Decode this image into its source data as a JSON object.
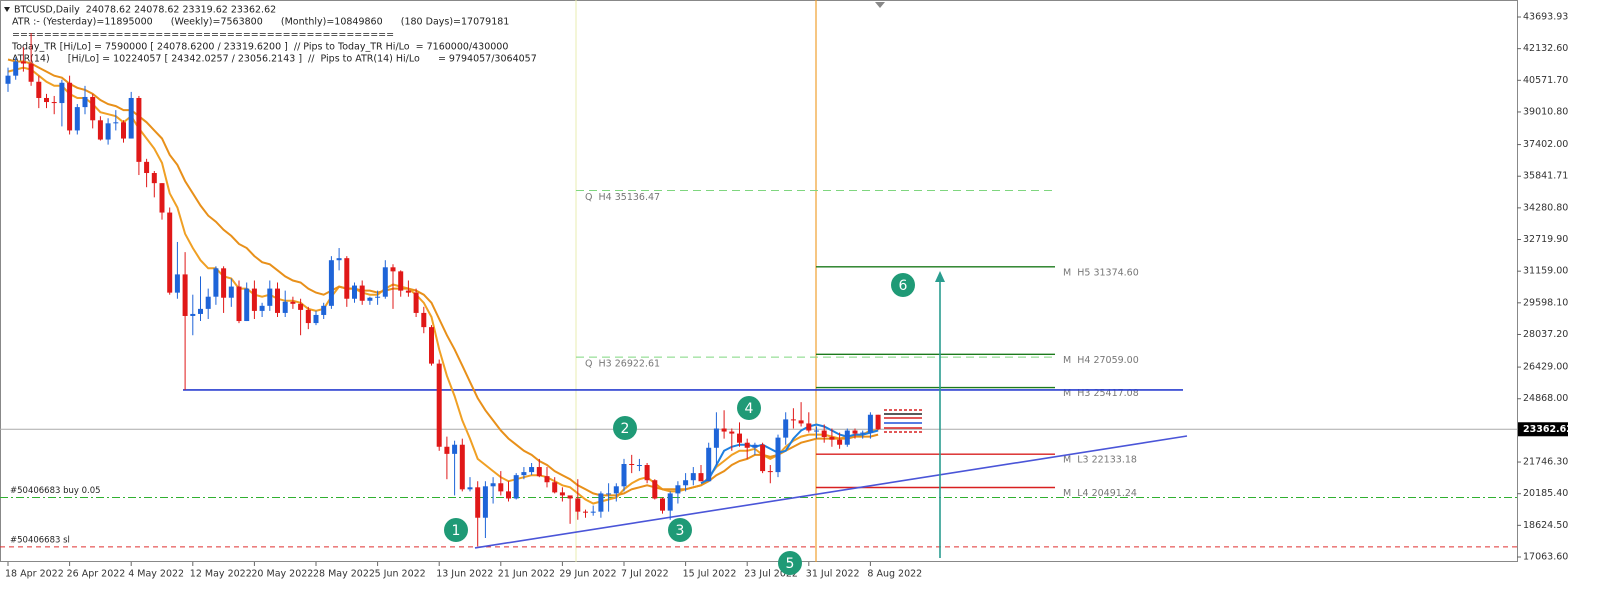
{
  "header": {
    "symbol_line": "BTCUSD,Daily  24078.62 24078.62 23319.62 23362.62",
    "atr_line": "ATR :- (Yesterday)=11895000      (Weekly)=7563800      (Monthly)=10849860      (180 Days)=17079181",
    "separator": "================================================",
    "today_tr_line": "Today_TR [Hi/Lo] = 7590000 [ 24078.6200 / 23319.6200 ]  // Pips to Today_TR Hi/Lo  = 7160000/430000",
    "atr14_line": "ATR(14)      [Hi/Lo] = 10224057 [ 24342.0257 / 23056.2143 ]  //  Pips to ATR(14) Hi/Lo      = 9794057/3064057"
  },
  "chart_data": {
    "type": "candlestick",
    "categories": [
      "18 Apr 2022",
      null,
      null,
      null,
      null,
      null,
      null,
      null,
      "26 Apr 2022",
      null,
      null,
      null,
      null,
      null,
      null,
      null,
      "4 May 2022",
      null,
      null,
      null,
      null,
      null,
      null,
      null,
      "12 May 2022",
      null,
      null,
      null,
      null,
      null,
      null,
      null,
      "20 May 2022",
      null,
      null,
      null,
      null,
      null,
      null,
      null,
      "28 May 2022",
      null,
      null,
      null,
      null,
      null,
      null,
      null,
      "5 Jun 2022",
      null,
      null,
      null,
      null,
      null,
      null,
      null,
      "13 Jun 2022",
      null,
      null,
      null,
      null,
      null,
      null,
      null,
      "21 Jun 2022",
      null,
      null,
      null,
      null,
      null,
      null,
      null,
      "29 Jun 2022",
      null,
      null,
      null,
      null,
      null,
      null,
      null,
      "7 Jul 2022",
      null,
      null,
      null,
      null,
      null,
      null,
      null,
      "15 Jul 2022",
      null,
      null,
      null,
      null,
      null,
      null,
      null,
      "23 Jul 2022",
      null,
      null,
      null,
      null,
      null,
      null,
      null,
      "31 Jul 2022",
      null,
      null,
      null,
      null,
      null,
      null,
      null,
      "8 Aug 2022",
      null
    ],
    "open": [
      40400,
      40800,
      41500,
      41400,
      40500,
      39700,
      39500,
      39450,
      40450,
      38100,
      39250,
      39750,
      38600,
      37650,
      38450,
      38500,
      37700,
      39700,
      36550,
      36000,
      35500,
      34050,
      30100,
      31000,
      28950,
      29050,
      29300,
      29900,
      31300,
      29850,
      30400,
      28700,
      30300,
      29200,
      29450,
      30300,
      29100,
      29650,
      29550,
      29250,
      28600,
      29000,
      29450,
      31700,
      31800,
      29800,
      30450,
      29700,
      29850,
      29900,
      31350,
      31150,
      30200,
      30100,
      29100,
      28400,
      26600,
      22500,
      22150,
      22600,
      20400,
      20500,
      19000,
      20550,
      20700,
      20300,
      19950,
      21100,
      21250,
      21500,
      21050,
      20750,
      20250,
      20100,
      19950,
      19300,
      19250,
      19300,
      20200,
      20200,
      20550,
      21650,
      21600,
      21600,
      20850,
      19950,
      19350,
      20200,
      20600,
      20850,
      21200,
      20800,
      22450,
      23400,
      23250,
      23150,
      22700,
      22450,
      22600,
      21300,
      21250,
      22950,
      23850,
      23800,
      23650,
      23300,
      23300,
      22980,
      22850,
      22600,
      23300,
      23150,
      23200,
      24078.62
    ],
    "high": [
      41200,
      41700,
      42200,
      42900,
      40800,
      39900,
      39800,
      40600,
      40800,
      39400,
      40300,
      39900,
      38800,
      38700,
      39100,
      38600,
      40000,
      39800,
      36700,
      36100,
      35500,
      34300,
      32600,
      32100,
      30000,
      30900,
      30300,
      31400,
      31400,
      30800,
      30700,
      30600,
      30700,
      29600,
      30700,
      30600,
      30200,
      29900,
      29800,
      29400,
      29200,
      29600,
      31900,
      32300,
      31900,
      30600,
      30700,
      29900,
      30200,
      31700,
      31500,
      31200,
      30700,
      30300,
      29400,
      28500,
      26800,
      23000,
      22800,
      22900,
      21000,
      20800,
      20800,
      21000,
      21300,
      20800,
      21200,
      21500,
      21700,
      21900,
      21500,
      21000,
      20500,
      20100,
      20900,
      19400,
      19600,
      20300,
      20700,
      20700,
      21900,
      22100,
      21900,
      21700,
      20900,
      20000,
      20300,
      20800,
      21200,
      21500,
      21600,
      22700,
      24200,
      24300,
      23400,
      23700,
      22900,
      22700,
      22700,
      21600,
      23100,
      24200,
      24400,
      24700,
      24200,
      23500,
      23600,
      23400,
      23200,
      23400,
      23400,
      23300,
      24200,
      24078.62
    ],
    "low": [
      40000,
      40600,
      41000,
      40300,
      39200,
      39200,
      38900,
      38300,
      37900,
      37900,
      38900,
      38200,
      37600,
      37400,
      38100,
      37500,
      37700,
      35900,
      35300,
      34800,
      33700,
      30000,
      29800,
      25300,
      28000,
      28700,
      28800,
      29500,
      29100,
      29400,
      28600,
      28700,
      28800,
      28900,
      29200,
      28900,
      28900,
      29300,
      28000,
      28300,
      28500,
      28800,
      29300,
      31200,
      29400,
      29600,
      29500,
      29500,
      29500,
      29800,
      29300,
      29900,
      29900,
      28900,
      28100,
      26500,
      22300,
      20900,
      20100,
      20300,
      20300,
      17600,
      18000,
      19700,
      20100,
      19800,
      19900,
      20900,
      21100,
      21000,
      20500,
      20200,
      19800,
      18700,
      18900,
      19000,
      19100,
      19000,
      19300,
      19800,
      20300,
      21200,
      21300,
      20700,
      19900,
      19200,
      18900,
      19700,
      20300,
      20600,
      20800,
      20800,
      21600,
      22900,
      22300,
      22500,
      21900,
      22100,
      21200,
      20700,
      21000,
      22600,
      23400,
      23500,
      23200,
      22900,
      22700,
      22500,
      22400,
      22500,
      22900,
      22900,
      22900,
      23319.62
    ],
    "close": [
      40800,
      41500,
      41400,
      40500,
      39700,
      39500,
      39450,
      40450,
      38100,
      39250,
      39750,
      38600,
      37650,
      38450,
      38500,
      37700,
      39700,
      36550,
      36000,
      35500,
      34050,
      30100,
      31000,
      28950,
      29050,
      29300,
      29900,
      31300,
      29850,
      30400,
      28700,
      30300,
      29200,
      29450,
      30300,
      29100,
      29650,
      29550,
      29250,
      28600,
      29000,
      29450,
      31700,
      31800,
      29800,
      30450,
      29700,
      29850,
      29900,
      31350,
      31150,
      30200,
      30100,
      29100,
      28400,
      26600,
      22500,
      22150,
      22600,
      20400,
      20500,
      19000,
      20550,
      20700,
      20300,
      19950,
      21100,
      21250,
      21500,
      21050,
      20750,
      20250,
      20100,
      19950,
      19300,
      19250,
      19300,
      20200,
      20200,
      20550,
      21650,
      21600,
      21600,
      20850,
      19950,
      19350,
      20200,
      20600,
      20850,
      21200,
      20800,
      22450,
      23400,
      23250,
      23150,
      22700,
      22450,
      22600,
      21300,
      21250,
      22950,
      23850,
      23800,
      23650,
      23300,
      23300,
      22980,
      22850,
      22600,
      23300,
      23150,
      23200,
      24078.62,
      23362.62
    ],
    "up_color": "#1e64d8",
    "down_color": "#e01818",
    "indicators": [
      {
        "color": "#f0a024",
        "values": [
          41000,
          41100,
          41200,
          41100,
          40800,
          40500,
          40300,
          40300,
          39900,
          39700,
          39700,
          39400,
          39000,
          38900,
          38800,
          38500,
          38800,
          38200,
          37700,
          37200,
          36500,
          35000,
          34300,
          33000,
          32300,
          31700,
          31300,
          31300,
          30900,
          30800,
          30300,
          30300,
          30000,
          29900,
          30000,
          29800,
          29700,
          29700,
          29600,
          29300,
          29200,
          29300,
          29900,
          30400,
          30300,
          30300,
          30100,
          30000,
          30000,
          30300,
          30500,
          30400,
          30300,
          30000,
          29600,
          28900,
          27300,
          26000,
          25000,
          23800,
          22900,
          21900,
          21600,
          21300,
          21000,
          20800,
          20900,
          21000,
          21100,
          21100,
          21000,
          20800,
          20600,
          20500,
          20200,
          19900,
          19700,
          19800,
          19900,
          20000,
          20400,
          20700,
          20900,
          21000,
          20700,
          20400,
          20300,
          20300,
          20400,
          20500,
          20600,
          21000,
          21500,
          21800,
          22100,
          22300,
          22300,
          22400,
          22100,
          21900,
          22100,
          22500,
          22800,
          23000,
          23100,
          23100,
          23100,
          23000,
          22900,
          23000,
          23000,
          23100,
          23300,
          23300
        ]
      },
      {
        "color": "#e8901a",
        "values": [
          41600,
          41500,
          41500,
          41400,
          41200,
          41000,
          40800,
          40700,
          40400,
          40200,
          40100,
          39900,
          39600,
          39400,
          39300,
          39100,
          39100,
          38800,
          38500,
          38100,
          37700,
          36900,
          36400,
          35600,
          35000,
          34400,
          33900,
          33600,
          33200,
          32900,
          32500,
          32300,
          31900,
          31600,
          31500,
          31200,
          30900,
          30700,
          30600,
          30300,
          30100,
          30000,
          30200,
          30400,
          30300,
          30300,
          30200,
          30200,
          30100,
          30200,
          30300,
          30300,
          30300,
          30200,
          30000,
          29600,
          28800,
          28000,
          27300,
          26500,
          25700,
          24900,
          24300,
          23800,
          23300,
          22900,
          22600,
          22300,
          22100,
          21800,
          21600,
          21300,
          21100,
          20900,
          20600,
          20400,
          20200,
          20100,
          20100,
          20100,
          20200,
          20400,
          20500,
          20600,
          20500,
          20400,
          20400,
          20400,
          20400,
          20500,
          20600,
          20800,
          21100,
          21300,
          21600,
          21800,
          21900,
          22100,
          22100,
          22000,
          22100,
          22300,
          22500,
          22700,
          22800,
          22900,
          22900,
          22900,
          22900,
          22900,
          23000,
          23000,
          23000,
          23100
        ]
      },
      {
        "color": "#1e7fe0",
        "values": [
          null,
          null,
          null,
          null,
          null,
          null,
          null,
          null,
          null,
          null,
          null,
          null,
          null,
          null,
          null,
          null,
          null,
          null,
          null,
          null,
          null,
          null,
          null,
          null,
          null,
          null,
          null,
          null,
          null,
          null,
          null,
          null,
          null,
          null,
          null,
          null,
          null,
          null,
          null,
          null,
          null,
          null,
          null,
          null,
          null,
          null,
          null,
          null,
          null,
          null,
          null,
          null,
          null,
          null,
          null,
          null,
          null,
          null,
          null,
          null,
          null,
          null,
          null,
          null,
          null,
          null,
          null,
          null,
          null,
          null,
          null,
          null,
          null,
          null,
          null,
          null,
          null,
          null,
          null,
          null,
          null,
          null,
          null,
          null,
          null,
          null,
          null,
          null,
          null,
          null,
          20700,
          20900,
          21600,
          22300,
          22500,
          22600,
          22600,
          22500,
          22600,
          22400,
          22200,
          22300,
          22900,
          23300,
          23500,
          23600,
          23500,
          23300,
          23100,
          23000,
          23100,
          23100,
          23200,
          23300
        ]
      }
    ],
    "ylim": [
      16817,
      44532
    ],
    "yticks": [
      43693.93,
      {
        "value": 42132.6,
        "label": "42132.60"
      },
      {
        "value": 40571.7,
        "label": "40571.70"
      },
      {
        "value": 39010.8,
        "label": "39010.80"
      },
      {
        "value": 37402,
        "label": "37402.00"
      },
      35841.71,
      {
        "value": 34280.8,
        "label": "34280.80"
      },
      {
        "value": 32719.9,
        "label": "32719.90"
      },
      {
        "value": 31159,
        "label": "31159.00"
      },
      {
        "value": 29598.1,
        "label": "29598.10"
      },
      {
        "value": 28037.2,
        "label": "28037.20"
      },
      {
        "value": 26429,
        "label": "26429.00"
      },
      {
        "value": 24868,
        "label": "24868.00"
      },
      {
        "value": 21746.3,
        "label": "21746.30"
      },
      {
        "value": 20185.4,
        "label": "20185.40"
      },
      {
        "value": 18624.5,
        "label": "18624.50"
      },
      {
        "value": 17063.6,
        "label": "17063.60"
      }
    ],
    "current_price": 23362.62,
    "quarterly_levels": [
      {
        "value": 35136.47,
        "label": "Q  H4 35136.47",
        "color": "#7fd67f"
      },
      {
        "value": 26922.61,
        "label": "Q  H3 26922.61",
        "color": "#7fd67f"
      }
    ],
    "monthly_levels": [
      {
        "value": 31374.6,
        "label": "M  H5 31374.60",
        "color": "#1c7a1c"
      },
      {
        "value": 27059,
        "label": "M  H4 27059.00",
        "color": "#1c7a1c"
      },
      {
        "value": 25417.08,
        "label": "M  H3 25417.08",
        "color": "#1c7a1c"
      },
      {
        "value": 22133.18,
        "label": "M  L3 22133.18",
        "color": "#d82020"
      },
      {
        "value": 20491.24,
        "label": "M  L4 20491.24",
        "color": "#d82020"
      }
    ],
    "orders": [
      {
        "value": 20000,
        "label": "#50406683 buy 0.05",
        "color": "#30b030"
      },
      {
        "value": 17560,
        "label": "#50406683 sl",
        "color": "#e03030"
      }
    ],
    "support_line": {
      "value": 25300,
      "color": "#2a3fd0"
    },
    "trendline": {
      "values": [
        17510,
        23030
      ],
      "color": "#4a55d8"
    },
    "markers": [
      "1",
      "2",
      "3",
      "4",
      "5",
      "6"
    ]
  }
}
